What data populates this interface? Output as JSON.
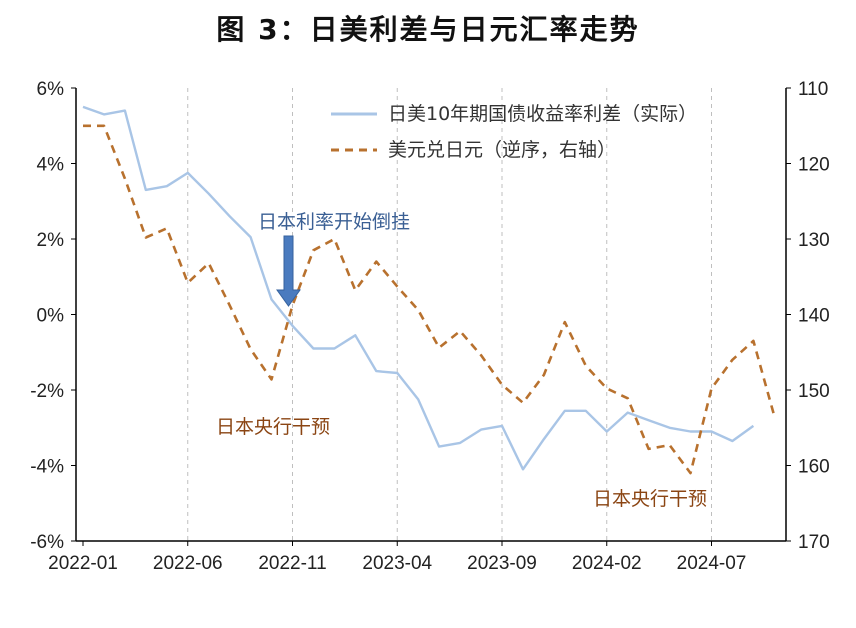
{
  "title": "图 3：日美利差与日元汇率走势",
  "chart_data": {
    "type": "line",
    "x_tick_labels": [
      "2022-01",
      "2022-06",
      "2022-11",
      "2023-04",
      "2023-09",
      "2024-02",
      "2024-07"
    ],
    "y_left": {
      "min": -6,
      "max": 6,
      "step": 2,
      "tick_labels": [
        "6%",
        "4%",
        "2%",
        "0%",
        "-2%",
        "-4%",
        "-6%"
      ]
    },
    "y_right": {
      "min": 110,
      "max": 170,
      "step": 10,
      "inverted": true,
      "tick_labels": [
        "110",
        "120",
        "130",
        "140",
        "150",
        "160",
        "170"
      ]
    },
    "grid": "vertical-dashed",
    "legend_position": "top-right",
    "series": [
      {
        "name": "日美10年期国债收益率利差（实际）",
        "axis": "left",
        "style": "solid",
        "color": "#a9c5e6",
        "x": [
          "2022-01",
          "2022-02",
          "2022-03",
          "2022-04",
          "2022-05",
          "2022-06",
          "2022-07",
          "2022-08",
          "2022-09",
          "2022-10",
          "2022-11",
          "2022-12",
          "2023-01",
          "2023-02",
          "2023-03",
          "2023-04",
          "2023-05",
          "2023-06",
          "2023-07",
          "2023-08",
          "2023-09",
          "2023-10",
          "2023-11",
          "2023-12",
          "2024-01",
          "2024-02",
          "2024-03",
          "2024-04",
          "2024-05",
          "2024-06",
          "2024-07",
          "2024-08",
          "2024-09"
        ],
        "values": [
          5.5,
          5.3,
          5.4,
          3.3,
          3.4,
          3.75,
          3.2,
          2.6,
          2.05,
          0.4,
          -0.3,
          -0.9,
          -0.9,
          -0.55,
          -1.5,
          -1.55,
          -2.25,
          -3.5,
          -3.4,
          -3.05,
          -2.95,
          -4.1,
          -3.3,
          -2.55,
          -2.55,
          -3.1,
          -2.6,
          -2.8,
          -3.0,
          -3.1,
          -3.1,
          -3.35,
          -2.95
        ]
      },
      {
        "name": "美元兑日元（逆序，右轴）",
        "axis": "right",
        "style": "dashed",
        "color": "#b8712e",
        "x": [
          "2022-01",
          "2022-02",
          "2022-03",
          "2022-04",
          "2022-05",
          "2022-06",
          "2022-07",
          "2022-08",
          "2022-09",
          "2022-10",
          "2022-11",
          "2022-12",
          "2023-01",
          "2023-02",
          "2023-03",
          "2023-04",
          "2023-05",
          "2023-06",
          "2023-07",
          "2023-08",
          "2023-09",
          "2023-10",
          "2023-11",
          "2023-12",
          "2024-01",
          "2024-02",
          "2024-03",
          "2024-04",
          "2024-05",
          "2024-06",
          "2024-07",
          "2024-08",
          "2024-09",
          "2024-10"
        ],
        "values": [
          115,
          115,
          122,
          129.8,
          128.6,
          135.8,
          133.2,
          138.8,
          144.6,
          148.6,
          138.8,
          131.5,
          130,
          136.8,
          133,
          136.3,
          139.4,
          144.4,
          142.2,
          145.4,
          149.3,
          151.7,
          148,
          141,
          146.8,
          149.8,
          151.1,
          157.8,
          157.3,
          161,
          149.8,
          146,
          143.5,
          153.5
        ]
      }
    ],
    "annotations": [
      {
        "text": "日本利率开始倒挂",
        "arrow": true
      },
      {
        "text": "日本央行干预"
      },
      {
        "text": "日本央行干预"
      }
    ]
  }
}
